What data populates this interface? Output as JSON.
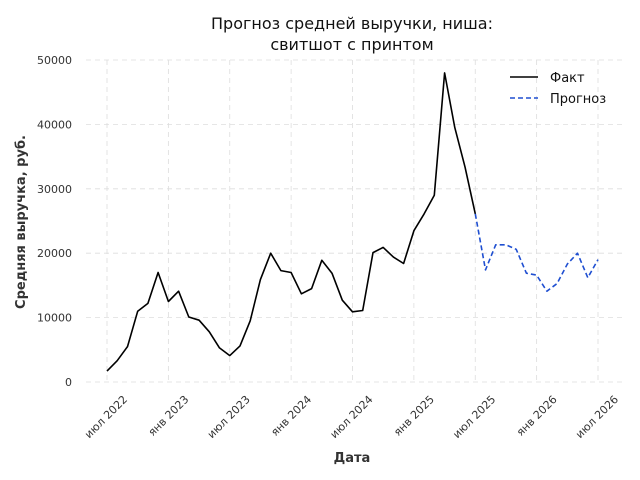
{
  "chart_data": {
    "type": "line",
    "title": [
      "Прогноз средней выручки, ниша:",
      "свитшот с принтом"
    ],
    "xlabel": "Дата",
    "ylabel": "Средняя выручка, руб.",
    "ylim": [
      0,
      50000
    ],
    "yticks": [
      0,
      10000,
      20000,
      30000,
      40000,
      50000
    ],
    "xlim": [
      "2022-07",
      "2026-07"
    ],
    "xticks": [
      {
        "label": "июл 2022",
        "x": "2022-07"
      },
      {
        "label": "янв 2023",
        "x": "2023-01"
      },
      {
        "label": "июл 2023",
        "x": "2023-07"
      },
      {
        "label": "янв 2024",
        "x": "2024-01"
      },
      {
        "label": "июл 2024",
        "x": "2024-07"
      },
      {
        "label": "янв 2025",
        "x": "2025-01"
      },
      {
        "label": "июл 2025",
        "x": "2025-07"
      },
      {
        "label": "янв 2026",
        "x": "2026-01"
      },
      {
        "label": "июл 2026",
        "x": "2026-07"
      }
    ],
    "grid": true,
    "legend": "top-right",
    "series": [
      {
        "name": "Факт",
        "color": "#000000",
        "style": "solid",
        "points": [
          [
            "2022-07",
            1700
          ],
          [
            "2022-08",
            3300
          ],
          [
            "2022-09",
            5500
          ],
          [
            "2022-10",
            11000
          ],
          [
            "2022-11",
            12200
          ],
          [
            "2022-12",
            17000
          ],
          [
            "2023-01",
            12500
          ],
          [
            "2023-02",
            14100
          ],
          [
            "2023-03",
            10100
          ],
          [
            "2023-04",
            9600
          ],
          [
            "2023-05",
            7800
          ],
          [
            "2023-06",
            5300
          ],
          [
            "2023-07",
            4100
          ],
          [
            "2023-08",
            5600
          ],
          [
            "2023-09",
            9500
          ],
          [
            "2023-10",
            15900
          ],
          [
            "2023-11",
            20000
          ],
          [
            "2023-12",
            17300
          ],
          [
            "2024-01",
            17000
          ],
          [
            "2024-02",
            13700
          ],
          [
            "2024-03",
            14500
          ],
          [
            "2024-04",
            18900
          ],
          [
            "2024-05",
            16900
          ],
          [
            "2024-06",
            12700
          ],
          [
            "2024-07",
            10900
          ],
          [
            "2024-08",
            11100
          ],
          [
            "2024-09",
            20100
          ],
          [
            "2024-10",
            20900
          ],
          [
            "2024-11",
            19400
          ],
          [
            "2024-12",
            18400
          ],
          [
            "2025-01",
            23500
          ],
          [
            "2025-02",
            26100
          ],
          [
            "2025-03",
            29000
          ],
          [
            "2025-04",
            48000
          ],
          [
            "2025-05",
            39500
          ],
          [
            "2025-06",
            33400
          ],
          [
            "2025-07",
            26100
          ]
        ]
      },
      {
        "name": "Прогноз",
        "color": "#1f4fd1",
        "style": "dashed",
        "points": [
          [
            "2025-07",
            26100
          ],
          [
            "2025-08",
            17400
          ],
          [
            "2025-09",
            21300
          ],
          [
            "2025-10",
            21300
          ],
          [
            "2025-11",
            20600
          ],
          [
            "2025-12",
            16900
          ],
          [
            "2026-01",
            16600
          ],
          [
            "2026-02",
            14100
          ],
          [
            "2026-03",
            15300
          ],
          [
            "2026-04",
            18300
          ],
          [
            "2026-05",
            20000
          ],
          [
            "2026-06",
            16200
          ],
          [
            "2026-07",
            19000
          ]
        ]
      }
    ]
  }
}
